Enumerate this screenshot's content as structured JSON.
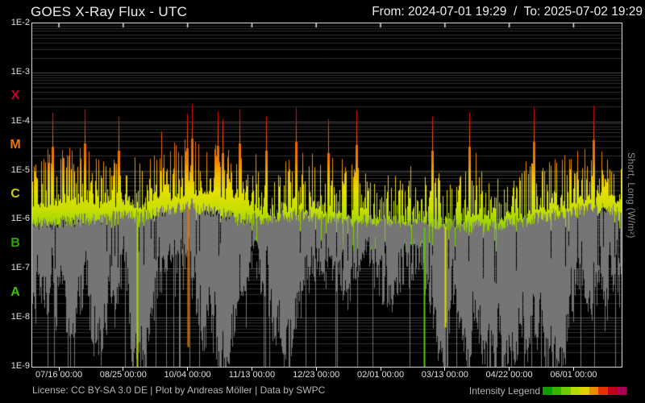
{
  "header": {
    "title": "GOES X-Ray Flux - UTC",
    "date_range": "From: 2024-07-01 19:29  /  To: 2025-07-02 19:29"
  },
  "footer": {
    "license": "License: CC BY-SA 3.0 DE | Plot by Andreas Möller | Data by SWPC",
    "legend_label": "Intensity Legend"
  },
  "colors": {
    "background": "#000000",
    "plot_border": "#d8d8d8",
    "grid_major": "#4f4f4f",
    "grid_minor": "#2e2e2e",
    "tick": "#e8e8e8",
    "short_series": "#757575"
  },
  "chart_data": {
    "type": "area",
    "title": "GOES X-Ray Flux - UTC",
    "x_range": {
      "from": "2024-07-01 19:29",
      "to": "2025-07-02 19:29",
      "timezone": "UTC"
    },
    "y_axis": {
      "scale": "log",
      "unit": "W/m²",
      "right_label": "Short, Long (W/m²)",
      "range_log10": [
        -9,
        -2
      ],
      "ticks": [
        {
          "label": "1E-2",
          "log10": -2
        },
        {
          "label": "1E-3",
          "log10": -3
        },
        {
          "label": "1E-4",
          "log10": -4
        },
        {
          "label": "1E-5",
          "log10": -5
        },
        {
          "label": "1E-6",
          "log10": -6
        },
        {
          "label": "1E-7",
          "log10": -7
        },
        {
          "label": "1E-8",
          "log10": -8
        },
        {
          "label": "1E-9",
          "log10": -9
        }
      ]
    },
    "flare_classes": [
      {
        "letter": "X",
        "log10_mid": -3.5,
        "color": "#c10030"
      },
      {
        "letter": "M",
        "log10_mid": -4.5,
        "color": "#ec7600"
      },
      {
        "letter": "C",
        "log10_mid": -5.5,
        "color": "#cfc800"
      },
      {
        "letter": "B",
        "log10_mid": -6.5,
        "color": "#2ea400"
      },
      {
        "letter": "A",
        "log10_mid": -7.5,
        "color": "#3fc000"
      }
    ],
    "x_axis": {
      "ticks": [
        {
          "label": "07/16 00:00",
          "t": 0.0452
        },
        {
          "label": "08/25 00:00",
          "t": 0.1543
        },
        {
          "label": "10/04 00:00",
          "t": 0.2635
        },
        {
          "label": "11/13 00:00",
          "t": 0.3727
        },
        {
          "label": "12/23 00:00",
          "t": 0.4818
        },
        {
          "label": "02/01 00:00",
          "t": 0.591
        },
        {
          "label": "03/13 00:00",
          "t": 0.7002
        },
        {
          "label": "04/22 00:00",
          "t": 0.8093
        },
        {
          "label": "06/01 00:00",
          "t": 0.9185
        }
      ]
    },
    "intensity_scale": [
      {
        "log10": -9.0,
        "color": "#28a800"
      },
      {
        "log10": -7.2,
        "color": "#2eb000"
      },
      {
        "log10": -6.6,
        "color": "#58c300"
      },
      {
        "log10": -6.1,
        "color": "#9ad400"
      },
      {
        "log10": -5.8,
        "color": "#c6df00"
      },
      {
        "log10": -5.4,
        "color": "#e6e000"
      },
      {
        "log10": -5.05,
        "color": "#f2b300"
      },
      {
        "log10": -4.8,
        "color": "#f08000"
      },
      {
        "log10": -4.3,
        "color": "#ee5a00"
      },
      {
        "log10": -4.0,
        "color": "#ee1500"
      },
      {
        "log10": -3.6,
        "color": "#e20010"
      },
      {
        "log10": -3.2,
        "color": "#c00032"
      },
      {
        "log10": -2.8,
        "color": "#a6004e"
      },
      {
        "log10": -2.0,
        "color": "#a6004e"
      }
    ],
    "legend_swatches": [
      "#109b00",
      "#35b500",
      "#70ca00",
      "#b4dc00",
      "#e2cf00",
      "#ec8a00",
      "#e93100",
      "#c3001c",
      "#a80052"
    ],
    "series": {
      "long": {
        "name": "Long",
        "render": "intensity-gradient",
        "base_log10": [
          [
            0,
            -6.0
          ],
          [
            0.05,
            -5.92
          ],
          [
            0.1,
            -5.95
          ],
          [
            0.18,
            -6.02
          ],
          [
            0.26,
            -5.85
          ],
          [
            0.3,
            -5.9
          ],
          [
            0.35,
            -6.0
          ],
          [
            0.42,
            -6.08
          ],
          [
            0.5,
            -6.0
          ],
          [
            0.55,
            -6.1
          ],
          [
            0.62,
            -6.2
          ],
          [
            0.68,
            -6.28
          ],
          [
            0.75,
            -6.18
          ],
          [
            0.82,
            -6.22
          ],
          [
            0.88,
            -6.1
          ],
          [
            0.93,
            -5.95
          ],
          [
            0.955,
            -5.98
          ],
          [
            0.97,
            -5.7
          ],
          [
            0.985,
            -5.95
          ],
          [
            1,
            -5.85
          ]
        ],
        "peak_log10": [
          [
            0,
            -4.9
          ],
          [
            0.05,
            -4.55
          ],
          [
            0.1,
            -4.75
          ],
          [
            0.15,
            -5.0
          ],
          [
            0.2,
            -4.75
          ],
          [
            0.27,
            -4.45
          ],
          [
            0.32,
            -4.65
          ],
          [
            0.4,
            -5.05
          ],
          [
            0.47,
            -4.75
          ],
          [
            0.52,
            -4.9
          ],
          [
            0.57,
            -5.15
          ],
          [
            0.63,
            -5.3
          ],
          [
            0.7,
            -5.1
          ],
          [
            0.76,
            -5.2
          ],
          [
            0.85,
            -4.9
          ],
          [
            0.9,
            -4.85
          ],
          [
            0.948,
            -4.7
          ],
          [
            0.97,
            -4.75
          ],
          [
            0.985,
            -5.15
          ],
          [
            1,
            -5.0
          ]
        ]
      },
      "short": {
        "name": "Short",
        "max_log10": [
          [
            0,
            -6.1
          ],
          [
            0.1,
            -6.0
          ],
          [
            0.2,
            -5.9
          ],
          [
            0.27,
            -5.7
          ],
          [
            0.35,
            -6.0
          ],
          [
            0.45,
            -5.9
          ],
          [
            0.55,
            -6.05
          ],
          [
            0.65,
            -6.0
          ],
          [
            0.75,
            -6.15
          ],
          [
            0.85,
            -6.0
          ],
          [
            0.95,
            -5.75
          ],
          [
            1,
            -5.85
          ]
        ],
        "min_range_log10": [
          -9.0,
          -6.8
        ]
      }
    },
    "events": {
      "x_flares": [
        [
          0.0342,
          -3.82
        ],
        [
          0.0889,
          -3.75
        ],
        [
          0.1464,
          -3.9
        ],
        [
          0.2627,
          -3.85
        ],
        [
          0.2709,
          -3.65
        ],
        [
          0.3147,
          -3.8
        ],
        [
          0.3229,
          -3.95
        ],
        [
          0.3516,
          -3.75
        ],
        [
          0.3967,
          -3.9
        ],
        [
          0.4473,
          -3.72
        ],
        [
          0.5021,
          -3.95
        ],
        [
          0.55,
          -3.78
        ],
        [
          0.6799,
          -3.9
        ],
        [
          0.7428,
          -3.82
        ],
        [
          0.8523,
          -3.72
        ],
        [
          0.9535,
          -3.68
        ]
      ],
      "dropouts": [
        {
          "t": 0.1778,
          "to_log10": -9.0,
          "color": "#aadd00"
        },
        {
          "t": 0.264,
          "to_log10": -8.6,
          "color": "#ee7700"
        },
        {
          "t": 0.666,
          "to_log10": -9.0,
          "color": "#55cc00"
        },
        {
          "t": 0.702,
          "to_log10": -8.2,
          "color": "#dddd00"
        }
      ]
    },
    "noise_seed": 20240701
  }
}
